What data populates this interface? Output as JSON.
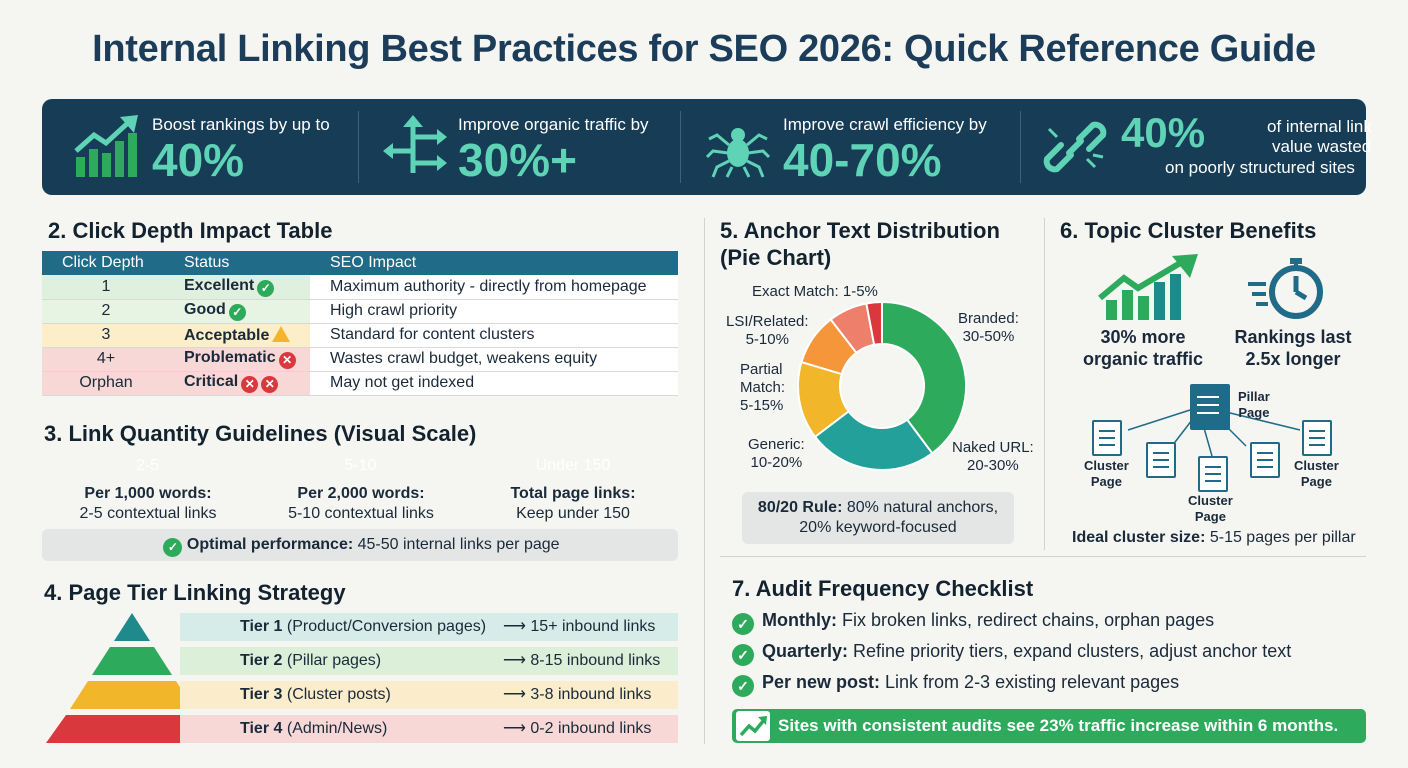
{
  "title": "Internal Linking Best Practices for SEO 2026: Quick Reference Guide",
  "banner": [
    {
      "caption": "Boost rankings by up to",
      "value": "40%",
      "icon": "trending-up-chart-icon"
    },
    {
      "caption": "Improve organic traffic by",
      "value": "30%+",
      "icon": "directional-arrows-icon"
    },
    {
      "caption": "Improve crawl efficiency by",
      "value": "40-70%",
      "icon": "spider-icon"
    },
    {
      "value": "40%",
      "caption_line1": "of internal link",
      "caption_line2": "value wasted",
      "caption_line3": "on poorly structured sites",
      "icon": "broken-link-icon"
    }
  ],
  "click_depth": {
    "heading": "2. Click Depth Impact Table",
    "columns": [
      "Click Depth",
      "Status",
      "SEO Impact"
    ],
    "rows": [
      {
        "depth": "1",
        "status": "Excellent",
        "impact": "Maximum authority - directly from homepage",
        "color": "#dff0df"
      },
      {
        "depth": "2",
        "status": "Good",
        "impact": "High crawl priority",
        "color": "#e7f3e3"
      },
      {
        "depth": "3",
        "status": "Acceptable",
        "impact": "Standard for content clusters",
        "color": "#fbeec8"
      },
      {
        "depth": "4+",
        "status": "Problematic",
        "impact": "Wastes crawl budget, weakens equity",
        "color": "#f8d8d6"
      },
      {
        "depth": "Orphan",
        "status": "Critical",
        "impact": "May not get indexed",
        "color": "#f8d8d6"
      }
    ]
  },
  "link_quantity": {
    "heading": "3. Link Quantity Guidelines (Visual Scale)",
    "bars": [
      {
        "label": "2-5",
        "color": "#2eaa5c"
      },
      {
        "label": "5-10",
        "color": "#f2b62b"
      },
      {
        "label": "Under 150",
        "color": "#d9393c"
      }
    ],
    "guides": [
      {
        "title": "Per 1,000 words:",
        "text": "2-5 contextual links"
      },
      {
        "title": "Per 2,000 words:",
        "text": "5-10 contextual links"
      },
      {
        "title": "Total page links:",
        "text": "Keep under 150"
      }
    ],
    "optimal_label": "Optimal performance:",
    "optimal_text": "45-50 internal links per page"
  },
  "tiers": {
    "heading": "4. Page Tier Linking Strategy",
    "rows": [
      {
        "name": "Tier 1",
        "desc": "(Product/Conversion pages)",
        "links": "15+ inbound links",
        "color": "#1f8a8c",
        "bg": "#d6ece8"
      },
      {
        "name": "Tier 2",
        "desc": "(Pillar pages)",
        "links": "8-15 inbound links",
        "color": "#2eaa5c",
        "bg": "#dcefd9"
      },
      {
        "name": "Tier 3",
        "desc": "(Cluster posts)",
        "links": "3-8 inbound links",
        "color": "#f2b62b",
        "bg": "#fbeccb"
      },
      {
        "name": "Tier 4",
        "desc": "(Admin/News)",
        "links": "0-2 inbound links",
        "color": "#d9393c",
        "bg": "#f8d8d6"
      }
    ],
    "arrow": "⟶"
  },
  "anchor": {
    "heading_line1": "5. Anchor Text Distribution",
    "heading_line2": "(Pie Chart)",
    "rule_label": "80/20 Rule:",
    "rule_text": " 80% natural anchors,",
    "rule_text2": "20% keyword-focused"
  },
  "chart_data": {
    "type": "pie",
    "style": "donut",
    "categories": [
      "Branded",
      "Naked URL",
      "Generic",
      "Partial Match",
      "LSI/Related",
      "Exact Match"
    ],
    "labels": [
      "Branded: 30-50%",
      "Naked URL: 20-30%",
      "Generic: 10-20%",
      "Partial Match: 5-15%",
      "LSI/Related: 5-10%",
      "Exact Match: 1-5%"
    ],
    "values": [
      40,
      25,
      15,
      10,
      7.5,
      3
    ],
    "colors": [
      "#2eaa5c",
      "#23a09a",
      "#f2b62b",
      "#f5963a",
      "#ee7f6b",
      "#d9393c"
    ]
  },
  "cluster": {
    "heading": "6. Topic Cluster Benefits",
    "benefit1": "30% more",
    "benefit1b": "organic traffic",
    "benefit2": "Rankings last",
    "benefit2b": "2.5x longer",
    "pillar_label1": "Pillar",
    "pillar_label2": "Page",
    "cluster_label1": "Cluster",
    "cluster_label2": "Page",
    "ideal_label": "Ideal cluster size:",
    "ideal_text": " 5-15 pages per pillar"
  },
  "audit": {
    "heading": "7. Audit Frequency Checklist",
    "items": [
      {
        "label": "Monthly:",
        "text": " Fix broken links, redirect chains, orphan pages"
      },
      {
        "label": "Quarterly:",
        "text": " Refine priority tiers, expand clusters, adjust anchor text"
      },
      {
        "label": "Per new post:",
        "text": " Link from 2-3 existing relevant pages"
      }
    ],
    "banner": "Sites with consistent audits see 23% traffic increase within 6 months."
  }
}
